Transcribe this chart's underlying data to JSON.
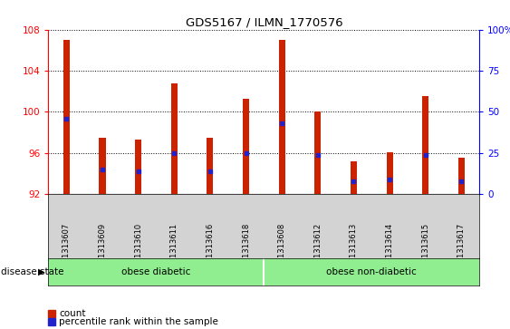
{
  "title": "GDS5167 / ILMN_1770576",
  "samples": [
    "GSM1313607",
    "GSM1313609",
    "GSM1313610",
    "GSM1313611",
    "GSM1313616",
    "GSM1313618",
    "GSM1313608",
    "GSM1313612",
    "GSM1313613",
    "GSM1313614",
    "GSM1313615",
    "GSM1313617"
  ],
  "count_values": [
    107.0,
    97.5,
    97.3,
    102.8,
    97.5,
    101.3,
    107.0,
    100.0,
    95.2,
    96.1,
    101.5,
    95.5
  ],
  "percentile_values": [
    46,
    15,
    14,
    25,
    14,
    25,
    43,
    24,
    8,
    9,
    24,
    8
  ],
  "y_min": 92,
  "y_max": 108,
  "y_ticks": [
    92,
    96,
    100,
    104,
    108
  ],
  "y2_ticks": [
    0,
    25,
    50,
    75,
    100
  ],
  "bar_color": "#cc2200",
  "percentile_color": "#2222cc",
  "group1_label": "obese diabetic",
  "group2_label": "obese non-diabetic",
  "group_bg_color": "#90ee90",
  "legend_count_label": "count",
  "legend_percentile_label": "percentile rank within the sample",
  "tick_area_bg": "#d3d3d3",
  "figsize": [
    5.63,
    3.63
  ],
  "dpi": 100
}
